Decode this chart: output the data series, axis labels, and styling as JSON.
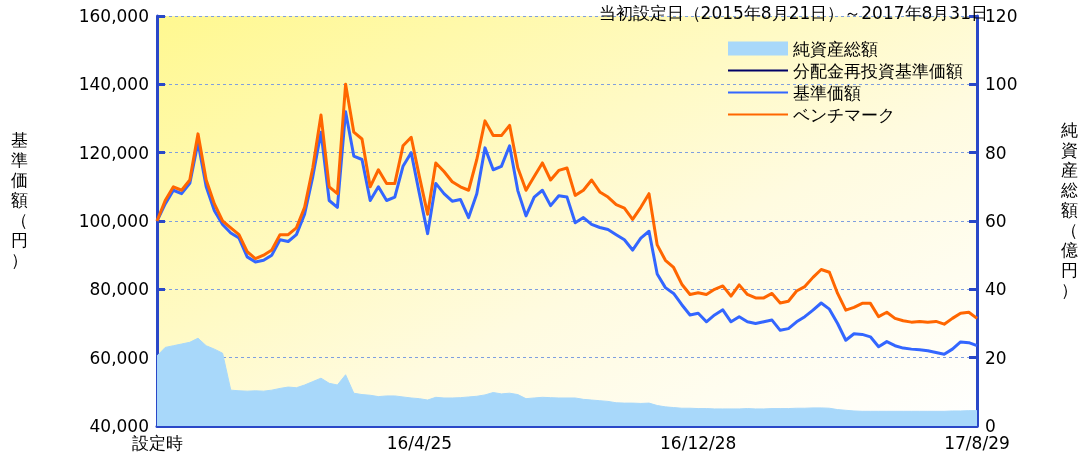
{
  "chart_data": {
    "type": "line",
    "title": "当初設定日（2015年8月21日）～2017年8月31日",
    "ylabel": "基準価額（円）",
    "y2label": "純資産総額（億円）",
    "categories": [
      "設定時",
      null,
      null,
      null,
      null,
      null,
      null,
      null,
      null,
      null,
      null,
      null,
      null,
      null,
      null,
      null,
      null,
      null,
      null,
      null,
      null,
      null,
      null,
      null,
      null,
      null,
      null,
      null,
      null,
      null,
      null,
      null,
      "16/4/25",
      null,
      null,
      null,
      null,
      null,
      null,
      null,
      null,
      null,
      null,
      null,
      null,
      null,
      null,
      null,
      null,
      null,
      null,
      null,
      null,
      null,
      null,
      null,
      null,
      null,
      null,
      null,
      null,
      null,
      null,
      null,
      null,
      null,
      "16/12/28",
      null,
      null,
      null,
      null,
      null,
      null,
      null,
      null,
      null,
      null,
      null,
      null,
      null,
      null,
      null,
      null,
      null,
      null,
      null,
      null,
      null,
      null,
      null,
      null,
      null,
      null,
      null,
      null,
      null,
      null,
      null,
      null,
      null,
      "17/8/29"
    ],
    "series": [
      {
        "name": "純資産総額",
        "type": "area",
        "axis": "y2",
        "color": "#a8d8fa",
        "values": [
          20.5,
          23,
          23.5,
          24,
          24.5,
          25.7,
          23.5,
          22.5,
          21.3,
          10.5,
          10.3,
          10.2,
          10.3,
          10.2,
          10.5,
          11,
          11.4,
          11.2,
          12,
          13,
          14,
          12.5,
          12,
          15,
          9.6,
          9.2,
          9,
          8.6,
          8.8,
          8.8,
          8.5,
          8.2,
          8,
          7.6,
          8.4,
          8.2,
          8.2,
          8.3,
          8.5,
          8.7,
          9.1,
          9.8,
          9.4,
          9.6,
          9.2,
          8,
          8.2,
          8.4,
          8.3,
          8.2,
          8.2,
          8.2,
          7.8,
          7.6,
          7.4,
          7.2,
          6.8,
          6.7,
          6.7,
          6.6,
          6.7,
          6,
          5.6,
          5.4,
          5.2,
          5.2,
          5.1,
          5.1,
          5,
          5,
          5,
          5,
          5.1,
          5,
          5,
          5.1,
          5.1,
          5.1,
          5.2,
          5.2,
          5.3,
          5.3,
          5.2,
          4.8,
          4.6,
          4.4,
          4.3,
          4.3,
          4.3,
          4.3,
          4.3,
          4.3,
          4.3,
          4.3,
          4.3,
          4.3,
          4.3,
          4.4,
          4.4,
          4.5,
          4.5
        ]
      },
      {
        "name": "分配金再投資基準価額",
        "color": "#000066",
        "values": [
          null,
          null,
          null,
          null,
          null,
          null,
          null,
          null,
          null,
          null,
          null,
          null,
          null,
          null,
          null,
          null,
          null,
          null,
          null,
          null,
          null,
          null,
          null,
          null,
          null,
          null,
          null,
          null,
          null,
          null,
          null,
          null,
          null,
          null,
          null,
          null,
          null,
          null,
          null,
          null,
          null,
          null,
          null,
          null,
          null,
          null,
          null,
          null,
          null,
          null,
          null,
          null,
          null,
          null,
          null,
          null,
          null,
          null,
          null,
          null,
          null,
          null,
          null,
          null,
          null,
          null,
          null,
          null,
          null,
          null,
          null,
          null,
          null,
          null,
          null,
          null,
          null,
          null,
          null,
          null,
          null,
          null,
          null,
          null,
          null,
          null,
          null,
          null,
          null,
          null,
          null,
          null,
          null,
          null,
          null,
          null,
          null,
          null,
          null,
          null,
          null
        ]
      },
      {
        "name": "基準価額",
        "color": "#3366ff",
        "values": [
          100000,
          105000,
          109000,
          108000,
          111000,
          123000,
          110000,
          103000,
          99000,
          96500,
          95000,
          89500,
          88000,
          88500,
          90000,
          94500,
          94000,
          96000,
          102000,
          113000,
          126000,
          106000,
          104000,
          132000,
          119000,
          118000,
          106000,
          110000,
          106000,
          107000,
          116000,
          120000,
          108000,
          96300,
          111000,
          108000,
          105800,
          106300,
          101000,
          108000,
          121400,
          115000,
          116000,
          122000,
          108900,
          101500,
          107000,
          109000,
          104500,
          107400,
          107000,
          99500,
          101000,
          99000,
          98100,
          97500,
          96000,
          94500,
          91500,
          95000,
          97000,
          84500,
          80500,
          78800,
          75500,
          72500,
          73000,
          70500,
          72500,
          74000,
          70500,
          72000,
          70500,
          70000,
          70500,
          71000,
          68000,
          68500,
          70500,
          72000,
          73900,
          76000,
          74200,
          70000,
          65100,
          67000,
          66800,
          66100,
          63200,
          64700,
          63500,
          62800,
          62500,
          62300,
          62000,
          61500,
          61000,
          62500,
          64600,
          64400,
          63500
        ]
      },
      {
        "name": "ベンチマーク",
        "color": "#ff6600",
        "values": [
          100000,
          106000,
          110000,
          109000,
          112000,
          125500,
          112000,
          105000,
          100000,
          98000,
          96000,
          91000,
          89000,
          90000,
          91500,
          96000,
          96000,
          98000,
          104000,
          115600,
          131000,
          110000,
          108000,
          140000,
          126000,
          124000,
          110000,
          115000,
          111000,
          111000,
          122000,
          124500,
          113000,
          102000,
          117000,
          114500,
          111500,
          110000,
          109000,
          118000,
          129300,
          125000,
          125000,
          128000,
          115600,
          109000,
          113000,
          117000,
          112000,
          114800,
          115500,
          107500,
          109000,
          112000,
          108500,
          107000,
          104800,
          103800,
          100500,
          104000,
          108000,
          93000,
          88500,
          86400,
          81500,
          78500,
          79000,
          78500,
          80000,
          81000,
          78000,
          81300,
          78500,
          77500,
          77500,
          78800,
          76000,
          76500,
          79500,
          80800,
          83500,
          85800,
          85000,
          78800,
          73900,
          74700,
          75900,
          75900,
          72000,
          73300,
          71500,
          70800,
          70400,
          70600,
          70400,
          70600,
          69800,
          71500,
          73000,
          73300,
          71500
        ]
      }
    ],
    "ylim": [
      40000,
      160000
    ],
    "yticks": [
      {
        "value": 40000,
        "label": "40,000"
      },
      {
        "value": 60000,
        "label": "60,000"
      },
      {
        "value": 80000,
        "label": "80,000"
      },
      {
        "value": 100000,
        "label": "100,000"
      },
      {
        "value": 120000,
        "label": "120,000"
      },
      {
        "value": 140000,
        "label": "140,000"
      },
      {
        "value": 160000,
        "label": "160,000"
      }
    ],
    "y2lim": [
      0,
      120
    ],
    "y2ticks": [
      0,
      20,
      40,
      60,
      80,
      100,
      120
    ],
    "grid": "y",
    "legend": "top right",
    "marker": "none",
    "line_style": "solid"
  }
}
